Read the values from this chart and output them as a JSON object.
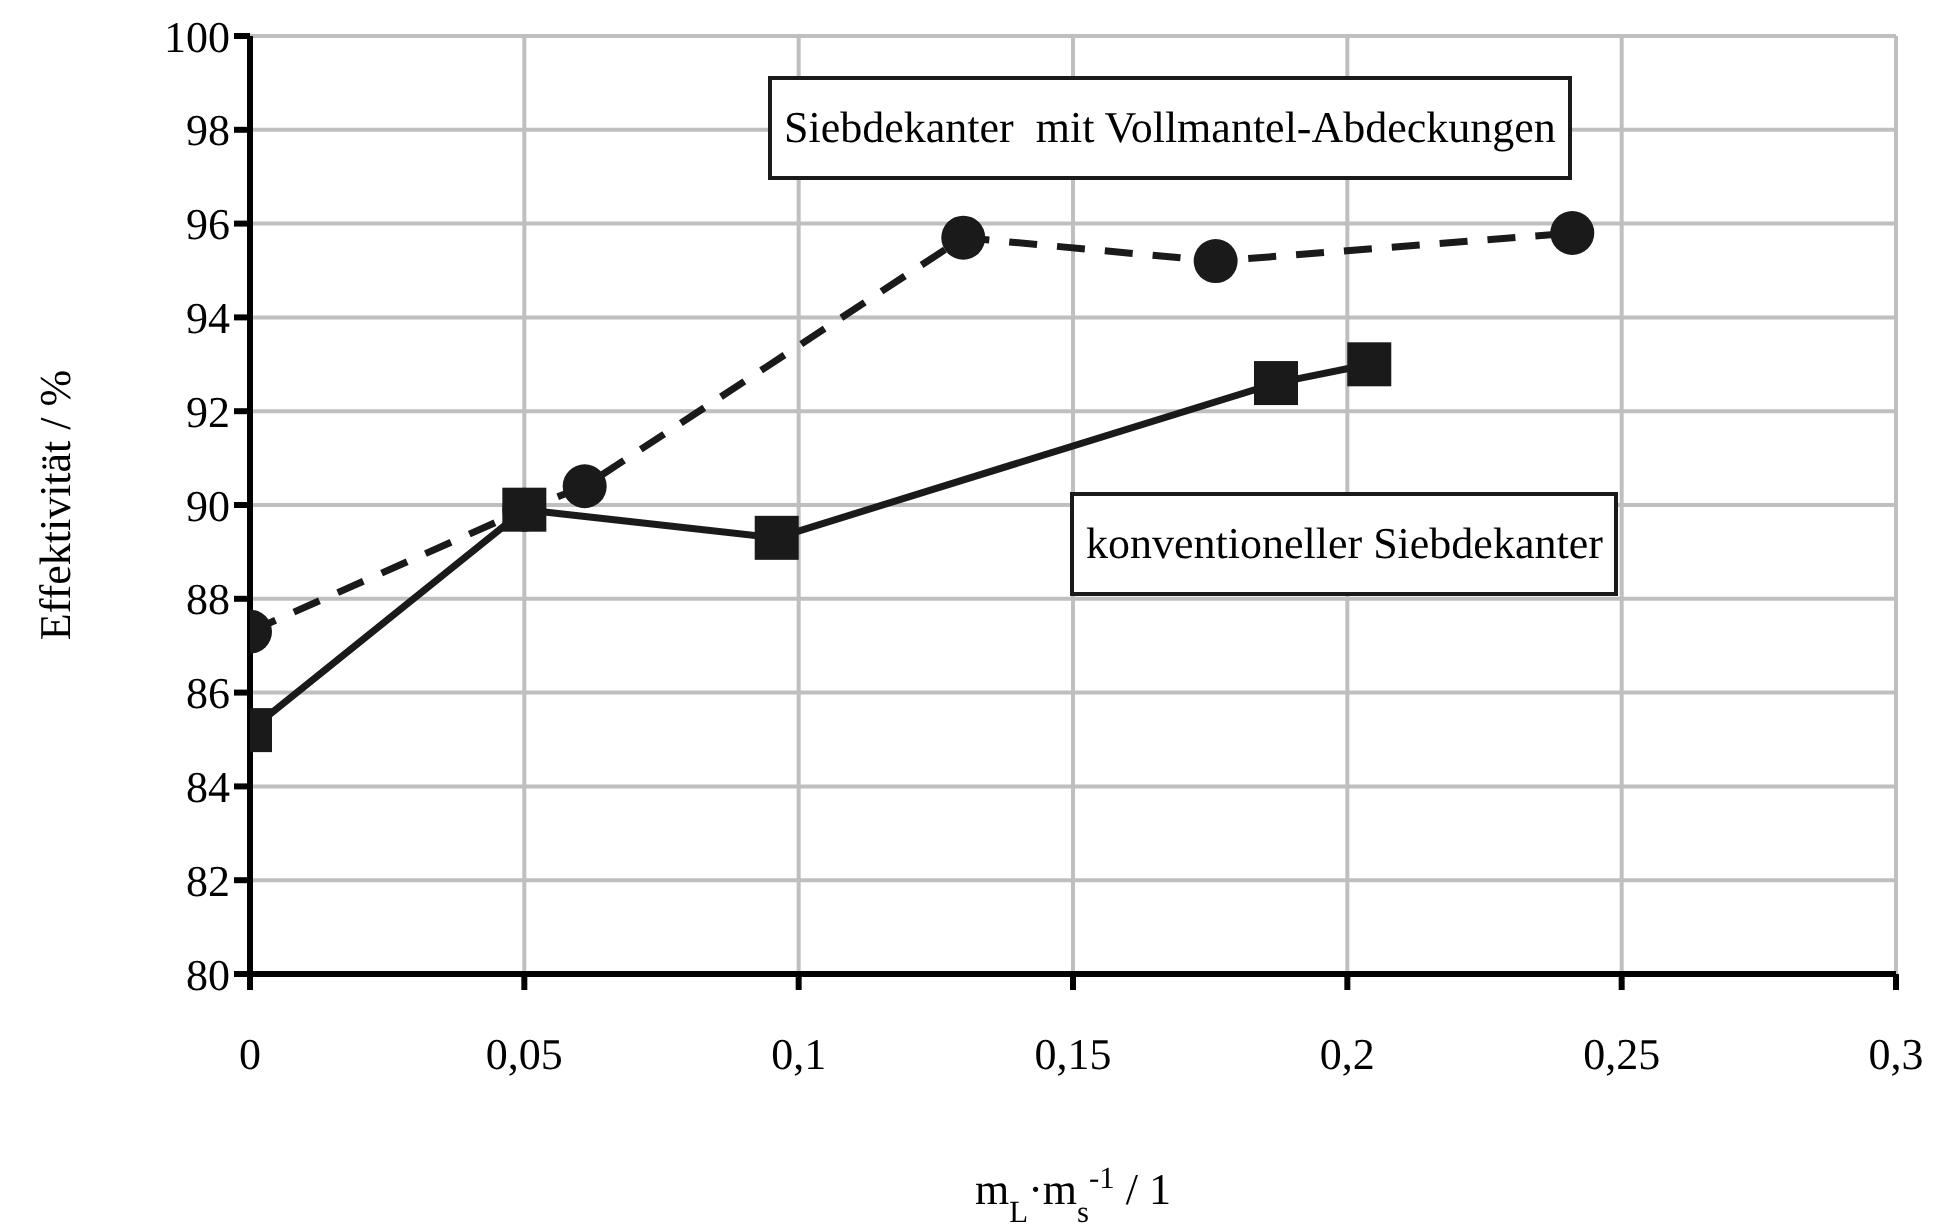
{
  "chart_data": {
    "type": "line",
    "xlabel": "m$_{L}$·m$_{s}$$^{-1}$ / 1",
    "ylabel": "Effektivität / %",
    "xlim": [
      0,
      0.3
    ],
    "xticks": [
      0,
      {
        "value": 0.05,
        "label": "0,05"
      },
      {
        "value": 0.1,
        "label": "0,1"
      },
      {
        "value": 0.15,
        "label": "0,15"
      },
      {
        "value": 0.2,
        "label": "0,2"
      },
      {
        "value": 0.25,
        "label": "0,25"
      },
      {
        "value": 0.3,
        "label": "0,3"
      }
    ],
    "ylim": [
      80,
      100
    ],
    "yticks": [
      80,
      82,
      84,
      86,
      88,
      90,
      92,
      94,
      96,
      98,
      100
    ],
    "grid": true,
    "series": [
      {
        "name": "Siebdekanter  mit Vollmantel-Abdeckungen",
        "color": "#1a1a1a",
        "marker": "circle",
        "line_style": "dashed",
        "x": [
          0,
          0.05,
          0.061,
          0.13,
          0.176,
          0.241
        ],
        "values": [
          87.3,
          89.9,
          90.4,
          95.7,
          95.2,
          95.8
        ]
      },
      {
        "name": "konventioneller Siebdekanter",
        "color": "#1a1a1a",
        "marker": "square",
        "line_style": "solid",
        "x": [
          0,
          0.05,
          0.096,
          0.187,
          0.204
        ],
        "values": [
          85.2,
          89.9,
          89.3,
          92.6,
          93.0
        ]
      }
    ]
  }
}
